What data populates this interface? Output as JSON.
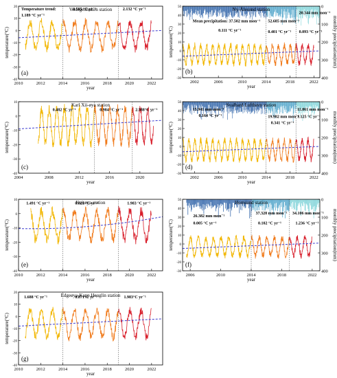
{
  "chart_data": [
    {
      "type": "line",
      "panel_label": "(a)",
      "title": "Verlegenhuken station",
      "xlabel": "year",
      "ylabel": "temperature(°C)",
      "xlim": [
        2010,
        2023
      ],
      "ylim": [
        -40,
        20
      ],
      "xticks": [
        "2010",
        "2012",
        "2014",
        "2016",
        "2018",
        "2020",
        "2022"
      ],
      "yticks": [
        "-40",
        "-30",
        "-20",
        "-10",
        "0",
        "10",
        "20"
      ],
      "period_breaks": [
        2014,
        2019
      ],
      "series": [
        {
          "start": 2010.6,
          "end": 2022.0,
          "annual_mean": -4,
          "amplitude": 11
        }
      ],
      "annotations": [
        {
          "text": "Temperature trend:",
          "x": 2010.25,
          "y": 16.5
        },
        {
          "text": "1.189 °C yr⁻¹",
          "x": 2010.25,
          "y": 11.5
        },
        {
          "text": "0.585 °C yr⁻¹",
          "x": 2014.9,
          "y": 16.5
        },
        {
          "text": "2.132 °C yr⁻¹",
          "x": 2019.4,
          "y": 16.5
        }
      ]
    },
    {
      "type": "line",
      "panel_label": "(b)",
      "title": "Ny-Ålesund station",
      "xlabel": "year",
      "ylabel": "temperature(°C)",
      "y2label": "monthly precipitation(mm)",
      "xlim": [
        2000,
        2023
      ],
      "ylim": [
        -30,
        50
      ],
      "y2lim": [
        0,
        400
      ],
      "xticks": [
        "2002",
        "2006",
        "2010",
        "2014",
        "2018",
        "2022"
      ],
      "yticks": [
        "-30",
        "-20",
        "-10",
        "0",
        "10",
        "20",
        "30",
        "40",
        "50"
      ],
      "y2ticks": [
        "0",
        "100",
        "200",
        "300",
        "400"
      ],
      "period_breaks": [
        2014,
        2019
      ],
      "series": [
        {
          "start": 2000.0,
          "end": 2022.0,
          "annual_mean": -4,
          "amplitude": 10
        }
      ],
      "annotations": [
        {
          "text": "Mean precipitation: 37.502 mm mon⁻¹",
          "x": 2001.7,
          "y": 32
        },
        {
          "text": "52.685 mm mon⁻¹",
          "x": 2014.3,
          "y": 32
        },
        {
          "text": "20.344 mm mon⁻¹",
          "x": 2019.5,
          "y": 41
        },
        {
          "text": "0.111 °C yr⁻¹",
          "x": 2006.0,
          "y": 21.5
        },
        {
          "text": "0.401 °C yr⁻¹",
          "x": 2014.3,
          "y": 20
        },
        {
          "text": "0.093 °C yr⁻¹",
          "x": 2019.5,
          "y": 20
        }
      ]
    },
    {
      "type": "line",
      "panel_label": "(c)",
      "title": "Karl Xii-øya station",
      "xlabel": "year",
      "ylabel": "temperature(°C)",
      "xlim": [
        2004,
        2023
      ],
      "ylim": [
        -40,
        10
      ],
      "xticks": [
        "2004",
        "2008",
        "2012",
        "2016",
        "2020"
      ],
      "yticks": [
        "-40",
        "-30",
        "-20",
        "-10",
        "0",
        "10"
      ],
      "period_breaks": [
        2014,
        2019
      ],
      "series": [
        {
          "start": 2006.6,
          "end": 2021.8,
          "annual_mean": -7,
          "amplitude": 12
        }
      ],
      "annotations": [
        {
          "text": "0.482 °C yr⁻¹",
          "x": 2008.5,
          "y": 3.5
        },
        {
          "text": "0.984 °C yr⁻¹",
          "x": 2014.7,
          "y": 3.5
        },
        {
          "text": "2.588°C yr⁻¹",
          "x": 2019.4,
          "y": 3.5
        }
      ]
    },
    {
      "type": "line",
      "panel_label": "(d)",
      "title": "Svalbard Lufthavn station",
      "xlabel": "year",
      "ylabel": "temperature(°C)",
      "y2label": "monthly precipitation(mm)",
      "xlim": [
        2000,
        2023
      ],
      "ylim": [
        -30,
        50
      ],
      "y2lim": [
        0,
        400
      ],
      "xticks": [
        "2002",
        "2006",
        "2010",
        "2014",
        "2018",
        "2022"
      ],
      "yticks": [
        "-30",
        "-20",
        "-10",
        "0",
        "10",
        "20",
        "30",
        "40",
        "50"
      ],
      "y2ticks": [
        "0",
        "100",
        "200",
        "300",
        "400"
      ],
      "period_breaks": [
        2014,
        2019
      ],
      "series": [
        {
          "start": 2000.0,
          "end": 2022.0,
          "annual_mean": -4,
          "amplitude": 11
        }
      ],
      "annotations": [
        {
          "text": "15.941 mm mon⁻¹",
          "x": 2001.7,
          "y": 40
        },
        {
          "text": "0.164 °C yr⁻¹",
          "x": 2002.7,
          "y": 33
        },
        {
          "text": "19.982 mm mon⁻¹",
          "x": 2014.3,
          "y": 32
        },
        {
          "text": "0.341 °C yr⁻¹",
          "x": 2014.8,
          "y": 25
        },
        {
          "text": "11.861 mm mon⁻¹",
          "x": 2019.2,
          "y": 40
        },
        {
          "text": "1.125 °C yr⁻¹",
          "x": 2019.2,
          "y": 32
        }
      ]
    },
    {
      "type": "line",
      "panel_label": "(e)",
      "title": "Kvitøya station",
      "xlabel": "year",
      "ylabel": "temperature(°C)",
      "xlim": [
        2010,
        2023
      ],
      "ylim": [
        -40,
        10
      ],
      "xticks": [
        "2010",
        "2012",
        "2014",
        "2016",
        "2018",
        "2020",
        "2022"
      ],
      "yticks": [
        "-40",
        "-30",
        "-20",
        "-10",
        "0",
        "10"
      ],
      "period_breaks": [
        2014,
        2019
      ],
      "series": [
        {
          "start": 2011.1,
          "end": 2022.0,
          "annual_mean": -8,
          "amplitude": 10
        }
      ],
      "annotations": [
        {
          "text": "1.491 °C yr⁻¹",
          "x": 2010.7,
          "y": 6.5
        },
        {
          "text": "0.821 °C yr⁻¹",
          "x": 2015.1,
          "y": 6.5
        },
        {
          "text": "1.983 °C yr⁻¹",
          "x": 2019.8,
          "y": 6.5
        }
      ]
    },
    {
      "type": "line",
      "panel_label": "(f)",
      "title": "Hornsund station",
      "xlabel": "year",
      "ylabel": "temperature(°C)",
      "y2label": "monthly precipitation(mm)",
      "xlim": [
        2005,
        2023
      ],
      "ylim": [
        -30,
        50
      ],
      "y2lim": [
        0,
        400
      ],
      "xticks": [
        "2006",
        "2010",
        "2014",
        "2018",
        "2022"
      ],
      "yticks": [
        "-30",
        "-20",
        "-10",
        "0",
        "10",
        "20",
        "30",
        "40",
        "50"
      ],
      "y2ticks": [
        "0",
        "100",
        "200",
        "300",
        "400"
      ],
      "period_breaks": [
        2014,
        2019
      ],
      "series": [
        {
          "start": 2005.5,
          "end": 2022.0,
          "annual_mean": -3,
          "amplitude": 10
        }
      ],
      "annotations": [
        {
          "text": "26.382 mm mon⁻¹",
          "x": 2006.4,
          "y": 30
        },
        {
          "text": "0.005 °C yr⁻¹",
          "x": 2006.4,
          "y": 22
        },
        {
          "text": "37.328 mm mon⁻¹",
          "x": 2014.6,
          "y": 33
        },
        {
          "text": "0.102 °C yr⁻¹",
          "x": 2014.9,
          "y": 22
        },
        {
          "text": "34.106 mm mon⁻¹",
          "x": 2019.4,
          "y": 33
        },
        {
          "text": "1.236 °C yr⁻¹",
          "x": 2019.8,
          "y": 22
        }
      ]
    },
    {
      "type": "line",
      "panel_label": "(g)",
      "title": "Edgeøya-Kapp Heuglin station",
      "xlabel": "year",
      "ylabel": "temperature(°C)",
      "xlim": [
        2010,
        2023
      ],
      "ylim": [
        -40,
        20
      ],
      "xticks": [
        "2010",
        "2012",
        "2014",
        "2016",
        "2018",
        "2020",
        "2022"
      ],
      "yticks": [
        "-40",
        "-30",
        "-20",
        "-10",
        "0",
        "10",
        "20"
      ],
      "period_breaks": [
        2014,
        2019
      ],
      "series": [
        {
          "start": 2010.6,
          "end": 2022.0,
          "annual_mean": -6,
          "amplitude": 11
        }
      ],
      "annotations": [
        {
          "text": "1.688 °C yr⁻¹",
          "x": 2010.5,
          "y": 15
        },
        {
          "text": "0.871°C yr⁻¹",
          "x": 2015.1,
          "y": 15
        },
        {
          "text": "1.983°C yr⁻¹",
          "x": 2019.5,
          "y": 15
        }
      ]
    }
  ],
  "colors": {
    "period_1": "#f2b705",
    "period_2": "#f07a1a",
    "period_3": "#d81e2a",
    "trend": "#3a3ad0",
    "break_line": "#555555",
    "precip_1": "#2f63a8",
    "precip_2": "#4da3c9",
    "precip_3": "#7fd3d8"
  }
}
